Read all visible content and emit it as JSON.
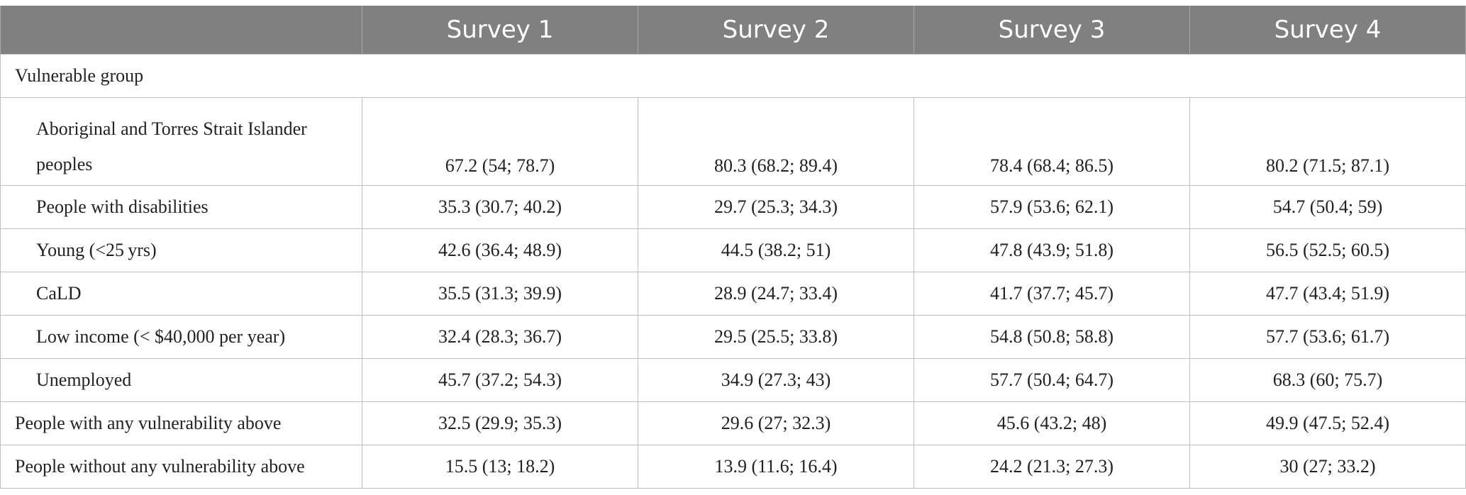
{
  "table": {
    "headers": [
      "",
      "Survey 1",
      "Survey 2",
      "Survey 3",
      "Survey 4"
    ],
    "section_label": "Vulnerable group",
    "rows": [
      {
        "label": "Aboriginal and Torres Strait Islander peoples",
        "values": [
          "67.2 (54; 78.7)",
          "80.3 (68.2; 89.4)",
          "78.4 (68.4; 86.5)",
          "80.2 (71.5; 87.1)"
        ]
      },
      {
        "label": "People with disabilities",
        "values": [
          "35.3 (30.7; 40.2)",
          "29.7 (25.3; 34.3)",
          "57.9 (53.6; 62.1)",
          "54.7 (50.4; 59)"
        ]
      },
      {
        "label": "Young (<25 yrs)",
        "values": [
          "42.6 (36.4; 48.9)",
          "44.5 (38.2; 51)",
          "47.8 (43.9; 51.8)",
          "56.5 (52.5; 60.5)"
        ]
      },
      {
        "label": "CaLD",
        "values": [
          "35.5 (31.3; 39.9)",
          "28.9 (24.7; 33.4)",
          "41.7 (37.7; 45.7)",
          "47.7 (43.4; 51.9)"
        ]
      },
      {
        "label": "Low income (< $40,000 per year)",
        "values": [
          "32.4 (28.3; 36.7)",
          "29.5 (25.5; 33.8)",
          "54.8 (50.8; 58.8)",
          "57.7 (53.6; 61.7)"
        ]
      },
      {
        "label": "Unemployed",
        "values": [
          "45.7 (37.2; 54.3)",
          "34.9 (27.3; 43)",
          "57.7 (50.4; 64.7)",
          "68.3 (60; 75.7)"
        ]
      },
      {
        "label": "People with any vulnerability above",
        "values": [
          "32.5 (29.9; 35.3)",
          "29.6 (27; 32.3)",
          "45.6 (43.2; 48)",
          "49.9 (47.5; 52.4)"
        ]
      },
      {
        "label": "People without any vulnerability above",
        "values": [
          "15.5 (13; 18.2)",
          "13.9 (11.6; 16.4)",
          "24.2 (21.3; 27.3)",
          "30 (27; 33.2)"
        ]
      }
    ]
  }
}
